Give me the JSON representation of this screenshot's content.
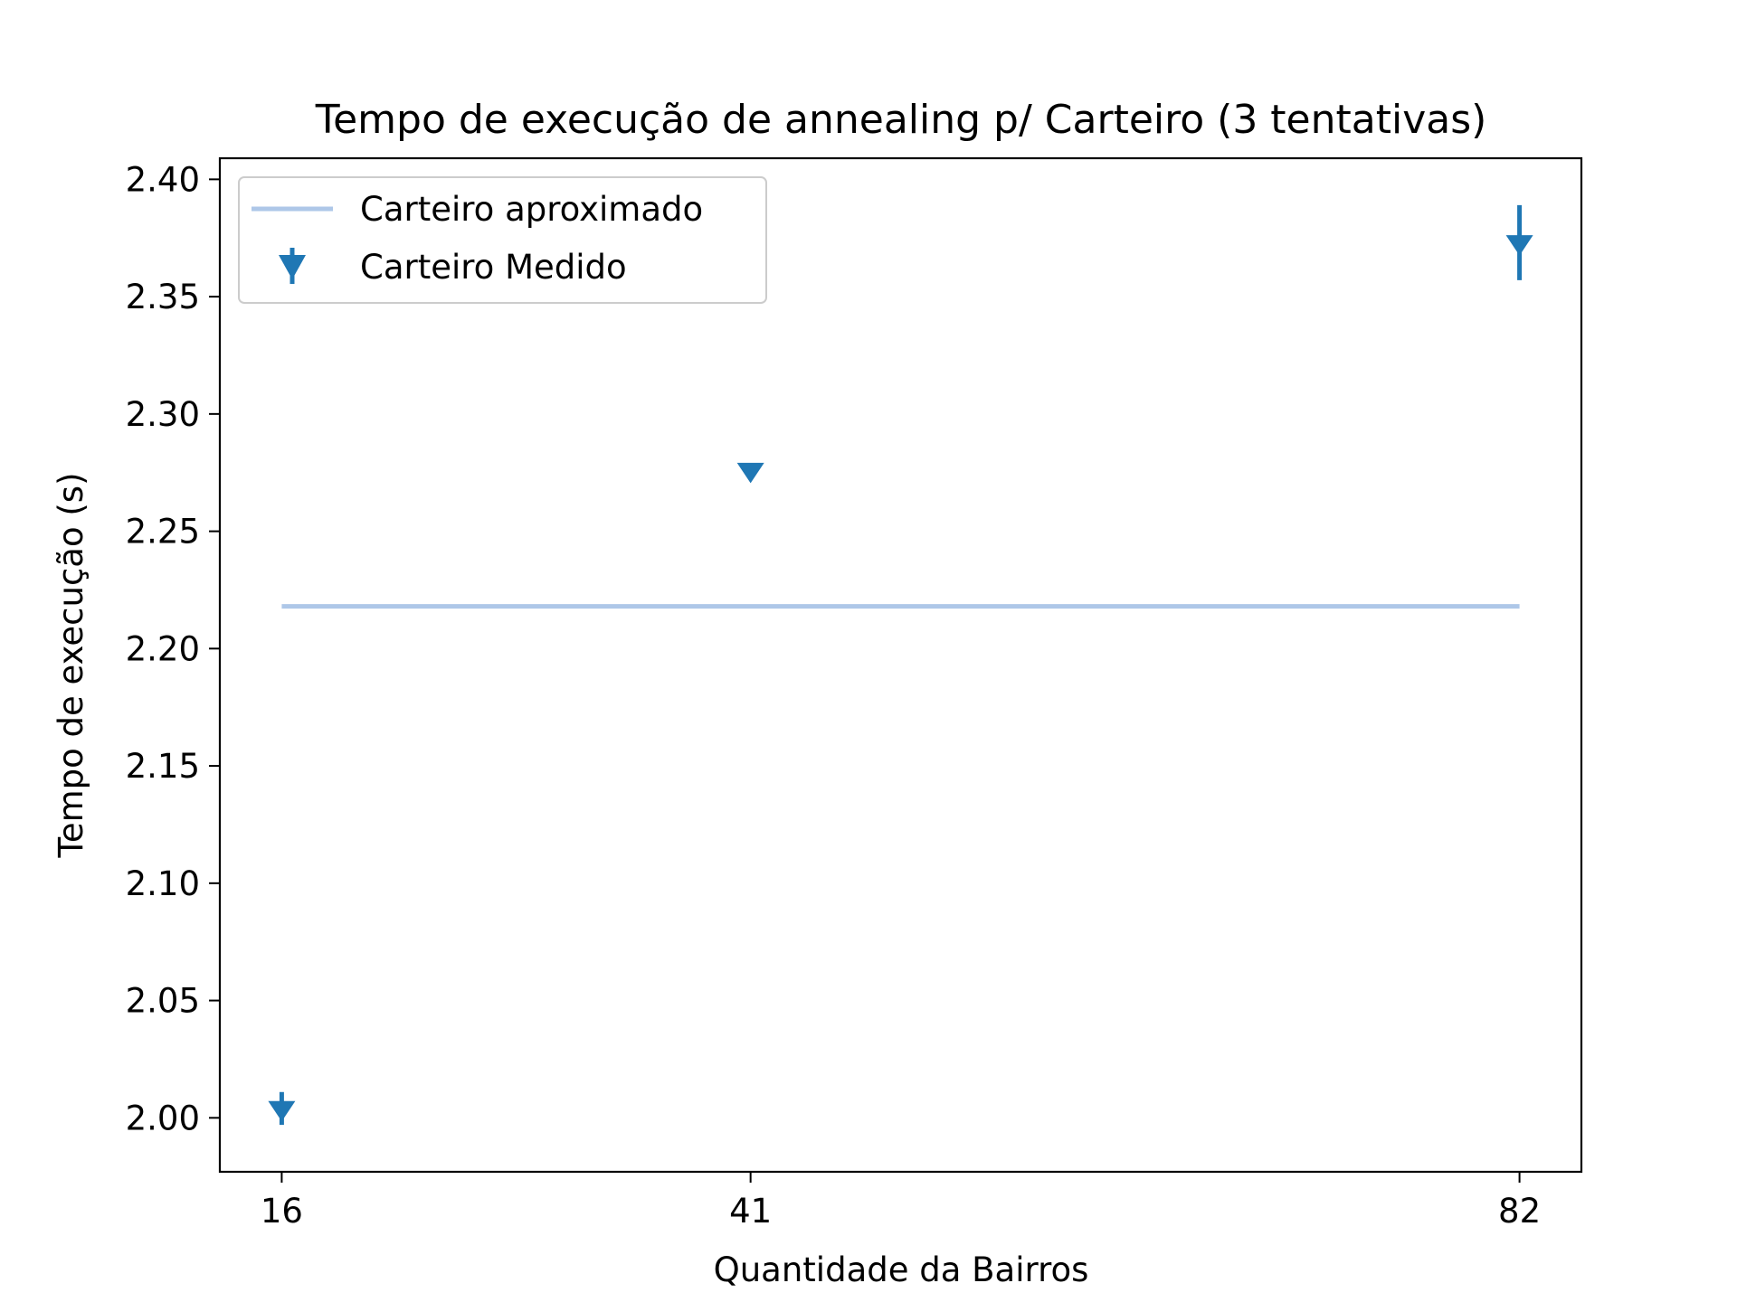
{
  "chart_data": {
    "type": "scatter",
    "title": "Tempo de execução de annealing p/ Carteiro (3 tentativas)",
    "xlabel": "Quantidade da Bairros",
    "ylabel": "Tempo de execução (s)",
    "x_ticks": [
      16,
      41,
      82
    ],
    "x_tick_labels": [
      "16",
      "41",
      "82"
    ],
    "xlim": [
      12.7,
      85.3
    ],
    "y_ticks": [
      2.0,
      2.05,
      2.1,
      2.15,
      2.2,
      2.25,
      2.3,
      2.35,
      2.4
    ],
    "y_tick_labels": [
      "2.00",
      "2.05",
      "2.10",
      "2.15",
      "2.20",
      "2.25",
      "2.30",
      "2.35",
      "2.40"
    ],
    "ylim": [
      1.977,
      2.409
    ],
    "grid": false,
    "legend_position": "top-left",
    "series": [
      {
        "name": "Carteiro aproximado",
        "kind": "line",
        "color": "#aec7e8",
        "x": [
          16,
          82
        ],
        "y": [
          2.218,
          2.218
        ]
      },
      {
        "name": "Carteiro Medido",
        "kind": "errorbar",
        "marker": "triangle-down",
        "color": "#1f77b4",
        "x": [
          16,
          41,
          82
        ],
        "y": [
          2.004,
          2.276,
          2.373
        ],
        "yerr": [
          0.007,
          0.0,
          0.016
        ]
      }
    ]
  }
}
